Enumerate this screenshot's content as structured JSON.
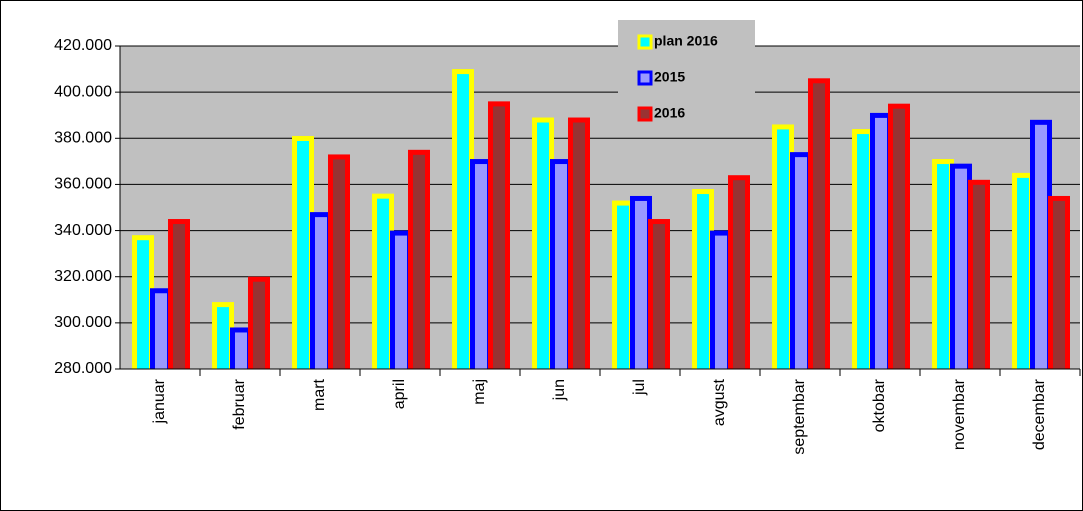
{
  "chart_data": {
    "type": "bar",
    "categories": [
      "januar",
      "februar",
      "mart",
      "april",
      "maj",
      "jun",
      "jul",
      "avgust",
      "septembar",
      "oktobar",
      "novembar",
      "decembar"
    ],
    "series": [
      {
        "name": "plan 2016",
        "color": "#ffff00",
        "inner_color": "#00ffff",
        "values": [
          338000,
          309000,
          381000,
          356000,
          410000,
          389000,
          353000,
          358000,
          386000,
          384000,
          371000,
          365000
        ]
      },
      {
        "name": "2015",
        "color": "#0000ff",
        "inner_color": "#9999ff",
        "values": [
          315000,
          298000,
          348000,
          340000,
          371000,
          371000,
          355000,
          340000,
          374000,
          391000,
          369000,
          388000
        ]
      },
      {
        "name": "2016",
        "color": "#ff0000",
        "inner_color": "#993333",
        "values": [
          345000,
          320000,
          373000,
          375000,
          396000,
          389000,
          345000,
          364000,
          406000,
          395000,
          362000,
          355000
        ]
      }
    ],
    "ylim": [
      280000,
      420000
    ],
    "yticks": [
      {
        "value": 280000,
        "label": "280.000"
      },
      {
        "value": 300000,
        "label": "300.000"
      },
      {
        "value": 320000,
        "label": "320.000"
      },
      {
        "value": 340000,
        "label": "340.000"
      },
      {
        "value": 360000,
        "label": "360.000"
      },
      {
        "value": 380000,
        "label": "380.000"
      },
      {
        "value": 400000,
        "label": "400.000"
      },
      {
        "value": 420000,
        "label": "420.000"
      }
    ],
    "grid": true,
    "legend": "top-right"
  }
}
